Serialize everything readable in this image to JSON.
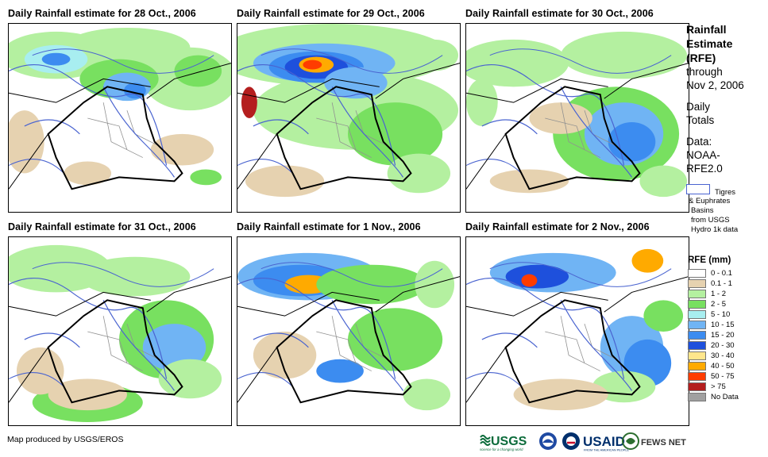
{
  "panels": [
    {
      "title": "Daily Rainfall estimate for 28 Oct., 2006",
      "date": "28 Oct., 2006"
    },
    {
      "title": "Daily Rainfall estimate for 29 Oct., 2006",
      "date": "29 Oct., 2006"
    },
    {
      "title": "Daily Rainfall estimate for 30 Oct., 2006",
      "date": "30 Oct., 2006"
    },
    {
      "title": "Daily Rainfall estimate for 31 Oct., 2006",
      "date": "31 Oct., 2006"
    },
    {
      "title": "Daily Rainfall estimate for 1 Nov., 2006",
      "date": "1 Nov., 2006"
    },
    {
      "title": "Daily Rainfall estimate for 2 Nov., 2006",
      "date": "2 Nov., 2006"
    }
  ],
  "side": {
    "title_line1": "Rainfall",
    "title_line2": "Estimate",
    "title_line3": "(RFE)",
    "through_line1": "through",
    "through_line2": "Nov 2, 2006",
    "totals_line1": "Daily",
    "totals_line2": "Totals",
    "data_line1": "Data:",
    "data_line2": "NOAA-",
    "data_line3": "RFE2.0"
  },
  "basins": {
    "line1": "Tigres",
    "line2": "& Euphrates",
    "line3": "Basins",
    "line4": "from USGS",
    "line5": "Hydro 1k data"
  },
  "legend": {
    "title": "RFE (mm)",
    "items": [
      {
        "label": "0 - 0.1",
        "color": "#ffffff"
      },
      {
        "label": "0.1 - 1",
        "color": "#e6d2b0"
      },
      {
        "label": "1 - 2",
        "color": "#b4f0a0"
      },
      {
        "label": "2 - 5",
        "color": "#78e060"
      },
      {
        "label": "5 - 10",
        "color": "#a8eef0"
      },
      {
        "label": "10 - 15",
        "color": "#70b4f4"
      },
      {
        "label": "15 - 20",
        "color": "#3c8cf0"
      },
      {
        "label": "20 - 30",
        "color": "#1e50dc"
      },
      {
        "label": "30 - 40",
        "color": "#ffe68c"
      },
      {
        "label": "40 - 50",
        "color": "#ffaa00"
      },
      {
        "label": "50 - 75",
        "color": "#ff3c00"
      },
      {
        "label": "> 75",
        "color": "#b41e1e"
      },
      {
        "label": "No Data",
        "color": "#a0a0a0"
      }
    ]
  },
  "credit": "Map produced by USGS/EROS",
  "logos": {
    "usgs": "USGS",
    "usgs_tag": "science for a changing world",
    "usaid": "USAID",
    "usaid_tag": "FROM THE AMERICAN PEOPLE",
    "fews": "FEWS NET"
  }
}
